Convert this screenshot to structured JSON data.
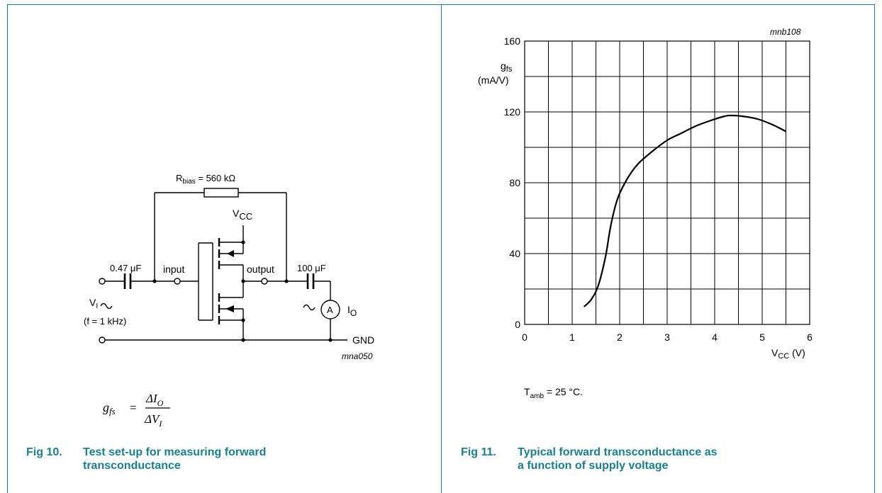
{
  "fig10": {
    "labels": {
      "rbias": "R",
      "rbias_sub": "bias",
      "rbias_val": " = 560 kΩ",
      "vcc": "V",
      "vcc_sub": "CC",
      "cap_in": "0.47 μF",
      "input": "input",
      "output": "output",
      "cap_out": "100 μF",
      "vi": "V",
      "vi_sub": "I",
      "freq": "(f = 1 kHz)",
      "ammeter": "A",
      "io": "I",
      "io_sub": "O",
      "gnd": "GND",
      "code": "mna050"
    },
    "formula": {
      "lhs": "g",
      "lhs_sub": "fs",
      "eq": "=",
      "num": "ΔI",
      "num_sub": "O",
      "den": "ΔV",
      "den_sub": "I"
    },
    "caption_num": "Fig 10.",
    "caption_line1": "Test set-up for measuring forward",
    "caption_line2": "transconductance"
  },
  "fig11": {
    "caption_num": "Fig 11.",
    "caption_line1": "Typical forward transconductance as",
    "caption_line2": "a function of supply voltage",
    "note_main": "T",
    "note_sub": "amb",
    "note_rest": " = 25 °C."
  },
  "chart_data": {
    "type": "line",
    "code": "mnb108",
    "ylabel": "g",
    "ylabel_sub": "fs",
    "ylabel_unit": "(mA/V)",
    "xlabel": "V",
    "xlabel_sub": "CC",
    "xlabel_unit": " (V)",
    "xlim": [
      0,
      6
    ],
    "ylim": [
      0,
      160
    ],
    "x_ticks": [
      "0",
      "1",
      "2",
      "3",
      "4",
      "5",
      "6"
    ],
    "y_ticks": [
      "0",
      "40",
      "80",
      "120",
      "160"
    ],
    "grid": true,
    "series": [
      {
        "x": [
          1.25,
          1.4,
          1.55,
          1.7,
          1.8,
          1.9,
          2.0,
          2.2,
          2.4,
          2.7,
          3.0,
          3.3,
          3.6,
          3.9,
          4.2,
          4.35,
          4.6,
          4.9,
          5.2,
          5.5
        ],
        "values": [
          10,
          14,
          22,
          38,
          54,
          66,
          74,
          84,
          91,
          98,
          104,
          108,
          112,
          115,
          117.5,
          118,
          117.5,
          116,
          113,
          109
        ]
      }
    ]
  }
}
